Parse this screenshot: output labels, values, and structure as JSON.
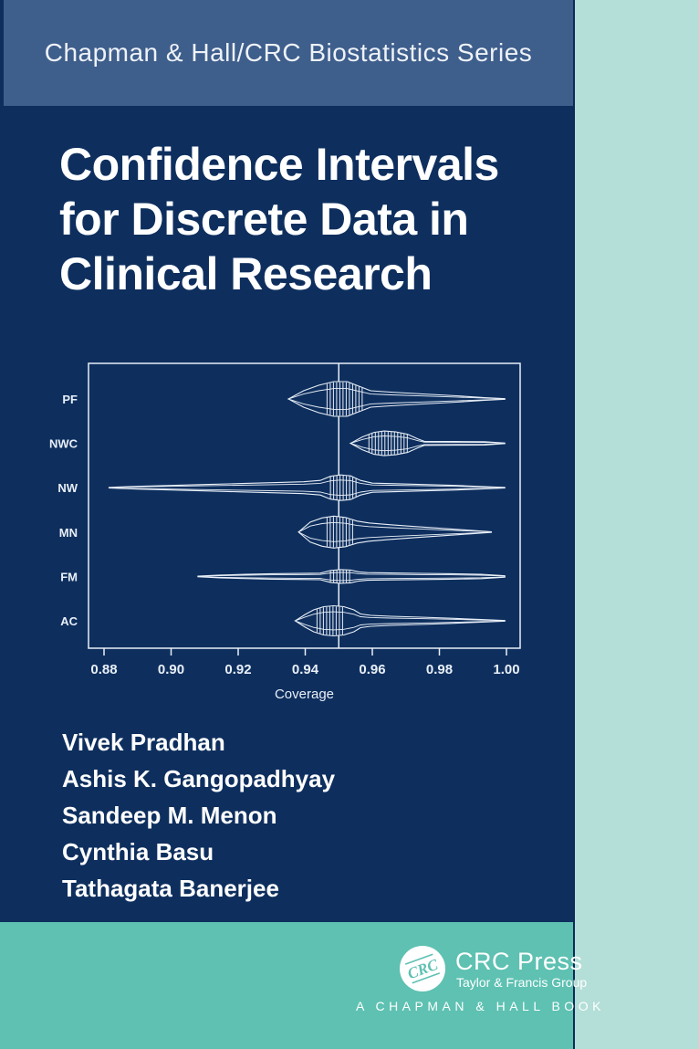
{
  "colors": {
    "navy": "#0e2f5e",
    "banner_blue": "#3e5e8c",
    "mint": "#b4ded8",
    "teal": "#5ec1b2",
    "chart_line": "#e9eff7",
    "text_white": "#ffffff"
  },
  "series_banner": {
    "text": "Chapman & Hall/CRC Biostatistics Series"
  },
  "title": {
    "line1": "Confidence Intervals",
    "line2": "for Discrete Data in",
    "line3": "Clinical Research"
  },
  "authors": [
    "Vivek Pradhan",
    "Ashis K. Gangopadhyay",
    "Sandeep M. Menon",
    "Cynthia Basu",
    "Tathagata Banerjee"
  ],
  "publisher": {
    "logo_text": "CRC",
    "name": "CRC Press",
    "group": "Taylor & Francis Group",
    "imprint": "A CHAPMAN & HALL BOOK"
  },
  "chart_data": {
    "type": "violin",
    "orientation": "horizontal",
    "title": "",
    "xlabel": "Coverage",
    "xlim": [
      0.88,
      1.0
    ],
    "xticks": [
      "0.88",
      "0.90",
      "0.92",
      "0.94",
      "0.96",
      "0.98",
      "1.00"
    ],
    "reference_line": 0.95,
    "grid": false,
    "legend": false,
    "categories": [
      "PF",
      "NWC",
      "NW",
      "MN",
      "FM",
      "AC"
    ],
    "series": [
      {
        "name": "PF",
        "min": 0.935,
        "max": 1.0,
        "peak": 0.951,
        "outline": [
          [
            0.935,
            0
          ],
          [
            0.9395,
            9
          ],
          [
            0.944,
            15
          ],
          [
            0.9485,
            19
          ],
          [
            0.9525,
            19
          ],
          [
            0.956,
            14
          ],
          [
            0.9595,
            9
          ],
          [
            0.9655,
            7.5
          ],
          [
            0.975,
            5.5
          ],
          [
            0.985,
            3.5
          ],
          [
            0.9935,
            1.5
          ],
          [
            0.9995,
            0.3
          ]
        ],
        "hatch": [
          0.9465,
          0.9575
        ]
      },
      {
        "name": "NWC",
        "min": 0.9535,
        "max": 1.0,
        "peak": 0.9635,
        "outline": [
          [
            0.9535,
            0
          ],
          [
            0.957,
            7
          ],
          [
            0.9605,
            12
          ],
          [
            0.9635,
            13.5
          ],
          [
            0.967,
            12.5
          ],
          [
            0.9705,
            10
          ],
          [
            0.9735,
            5
          ],
          [
            0.9755,
            2.2
          ],
          [
            0.985,
            2
          ],
          [
            0.9935,
            1.8
          ],
          [
            0.9995,
            0.3
          ]
        ],
        "hatch": [
          0.959,
          0.9705
        ]
      },
      {
        "name": "NW",
        "min": 0.8815,
        "max": 1.0,
        "peak": 0.9505,
        "outline": [
          [
            0.8815,
            0.3
          ],
          [
            0.89,
            1.5
          ],
          [
            0.9,
            2.5
          ],
          [
            0.91,
            3.5
          ],
          [
            0.92,
            4.5
          ],
          [
            0.93,
            5.5
          ],
          [
            0.9395,
            6.5
          ],
          [
            0.9445,
            8
          ],
          [
            0.9475,
            12.5
          ],
          [
            0.9505,
            14
          ],
          [
            0.9535,
            13
          ],
          [
            0.9565,
            8
          ],
          [
            0.96,
            5
          ],
          [
            0.9655,
            4.5
          ],
          [
            0.975,
            3.5
          ],
          [
            0.985,
            2.5
          ],
          [
            0.9935,
            1.2
          ],
          [
            0.9995,
            0.3
          ]
        ],
        "hatch": [
          0.9475,
          0.956
        ]
      },
      {
        "name": "MN",
        "min": 0.938,
        "max": 0.9955,
        "peak": 0.9485,
        "outline": [
          [
            0.938,
            0
          ],
          [
            0.9415,
            11
          ],
          [
            0.945,
            15.5
          ],
          [
            0.9485,
            17.5
          ],
          [
            0.952,
            16
          ],
          [
            0.9555,
            12
          ],
          [
            0.959,
            10
          ],
          [
            0.9655,
            8
          ],
          [
            0.973,
            6
          ],
          [
            0.981,
            4
          ],
          [
            0.989,
            2
          ],
          [
            0.9955,
            0.3
          ]
        ],
        "hatch": [
          0.9465,
          0.9545
        ]
      },
      {
        "name": "FM",
        "min": 0.908,
        "max": 1.0,
        "peak": 0.9505,
        "outline": [
          [
            0.908,
            0.3
          ],
          [
            0.9145,
            1.5
          ],
          [
            0.922,
            2.3
          ],
          [
            0.93,
            3
          ],
          [
            0.938,
            3.3
          ],
          [
            0.9445,
            3.6
          ],
          [
            0.9475,
            6.5
          ],
          [
            0.9505,
            7.5
          ],
          [
            0.9535,
            7
          ],
          [
            0.956,
            5
          ],
          [
            0.9585,
            4.2
          ],
          [
            0.9655,
            3.8
          ],
          [
            0.9745,
            3.4
          ],
          [
            0.9835,
            3
          ],
          [
            0.9925,
            2.4
          ],
          [
            0.9995,
            0.8
          ]
        ],
        "hatch": [
          0.9475,
          0.954
        ]
      },
      {
        "name": "AC",
        "min": 0.937,
        "max": 1.0,
        "peak": 0.9485,
        "outline": [
          [
            0.937,
            0
          ],
          [
            0.94,
            7
          ],
          [
            0.9425,
            12
          ],
          [
            0.9455,
            15.5
          ],
          [
            0.9485,
            16.5
          ],
          [
            0.9515,
            15.5
          ],
          [
            0.9545,
            12
          ],
          [
            0.9565,
            7.5
          ],
          [
            0.9595,
            6
          ],
          [
            0.9655,
            5
          ],
          [
            0.9745,
            4
          ],
          [
            0.9835,
            2.8
          ],
          [
            0.9925,
            1.4
          ],
          [
            0.9995,
            0.3
          ]
        ],
        "hatch": [
          0.9435,
          0.952
        ]
      }
    ]
  }
}
